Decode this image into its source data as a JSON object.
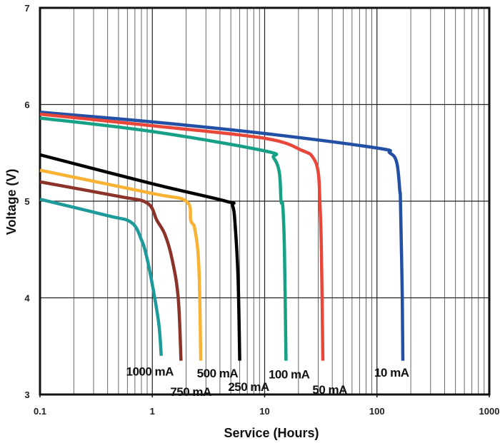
{
  "chart_data": {
    "type": "line",
    "title": "",
    "xlabel": "Service (Hours)",
    "ylabel": "Voltage (V)",
    "x_scale": "log",
    "xlim": [
      0.1,
      1000
    ],
    "ylim": [
      3,
      7
    ],
    "x_ticks": [
      "0.1",
      "1",
      "10",
      "100",
      "1000"
    ],
    "y_ticks": [
      "3",
      "4",
      "5",
      "6",
      "7"
    ],
    "grid": true,
    "series": [
      {
        "name": "10 mA",
        "color": "#2350a4",
        "x": [
          0.1,
          1,
          10,
          100,
          130,
          150,
          160,
          162,
          168,
          170
        ],
        "y": [
          5.92,
          5.82,
          5.7,
          5.55,
          5.5,
          5.4,
          5.1,
          4.98,
          4.0,
          3.35
        ]
      },
      {
        "name": "50 mA",
        "color": "#e8473a",
        "x": [
          0.1,
          1,
          10,
          22,
          27,
          30,
          31,
          32,
          33
        ],
        "y": [
          5.9,
          5.78,
          5.65,
          5.52,
          5.45,
          5.3,
          5.0,
          4.5,
          3.35
        ]
      },
      {
        "name": "100 mA",
        "color": "#16a086",
        "x": [
          0.1,
          1,
          10,
          12,
          13.5,
          14,
          14.5,
          15,
          15.5
        ],
        "y": [
          5.86,
          5.72,
          5.52,
          5.45,
          5.3,
          5.0,
          4.95,
          4.5,
          3.35
        ]
      },
      {
        "name": "250 mA",
        "color": "#000000",
        "x": [
          0.1,
          1,
          4.5,
          5.2,
          5.5,
          5.8,
          6.0
        ],
        "y": [
          5.48,
          5.18,
          5.0,
          4.95,
          4.7,
          4.2,
          3.35
        ]
      },
      {
        "name": "500 mA",
        "color": "#f9b233",
        "x": [
          0.1,
          1,
          2.0,
          2.2,
          2.4,
          2.6,
          2.7
        ],
        "y": [
          5.32,
          5.08,
          5.0,
          4.8,
          4.7,
          4.3,
          3.35
        ]
      },
      {
        "name": "750 mA",
        "color": "#8b3328",
        "x": [
          0.1,
          0.5,
          0.9,
          1.1,
          1.3,
          1.5,
          1.7,
          1.8
        ],
        "y": [
          5.2,
          5.05,
          4.98,
          4.8,
          4.65,
          4.4,
          4.0,
          3.35
        ]
      },
      {
        "name": "1000 mA",
        "color": "#1e9a9a",
        "x": [
          0.1,
          0.4,
          0.65,
          0.8,
          0.9,
          1.05,
          1.15,
          1.2
        ],
        "y": [
          5.02,
          4.85,
          4.78,
          4.6,
          4.4,
          4.0,
          3.7,
          3.4
        ]
      }
    ],
    "annotations": [
      {
        "text": "10 mA",
        "x": 135,
        "y": 3.23
      },
      {
        "text": "50 mA",
        "x": 38,
        "y": 3.05
      },
      {
        "text": "100 mA",
        "x": 16.5,
        "y": 3.21
      },
      {
        "text": "250 mA",
        "x": 7.2,
        "y": 3.08
      },
      {
        "text": "500 mA",
        "x": 3.8,
        "y": 3.22
      },
      {
        "text": "750 mA",
        "x": 2.2,
        "y": 3.03
      },
      {
        "text": "1000 mA",
        "x": 0.95,
        "y": 3.24
      }
    ]
  }
}
